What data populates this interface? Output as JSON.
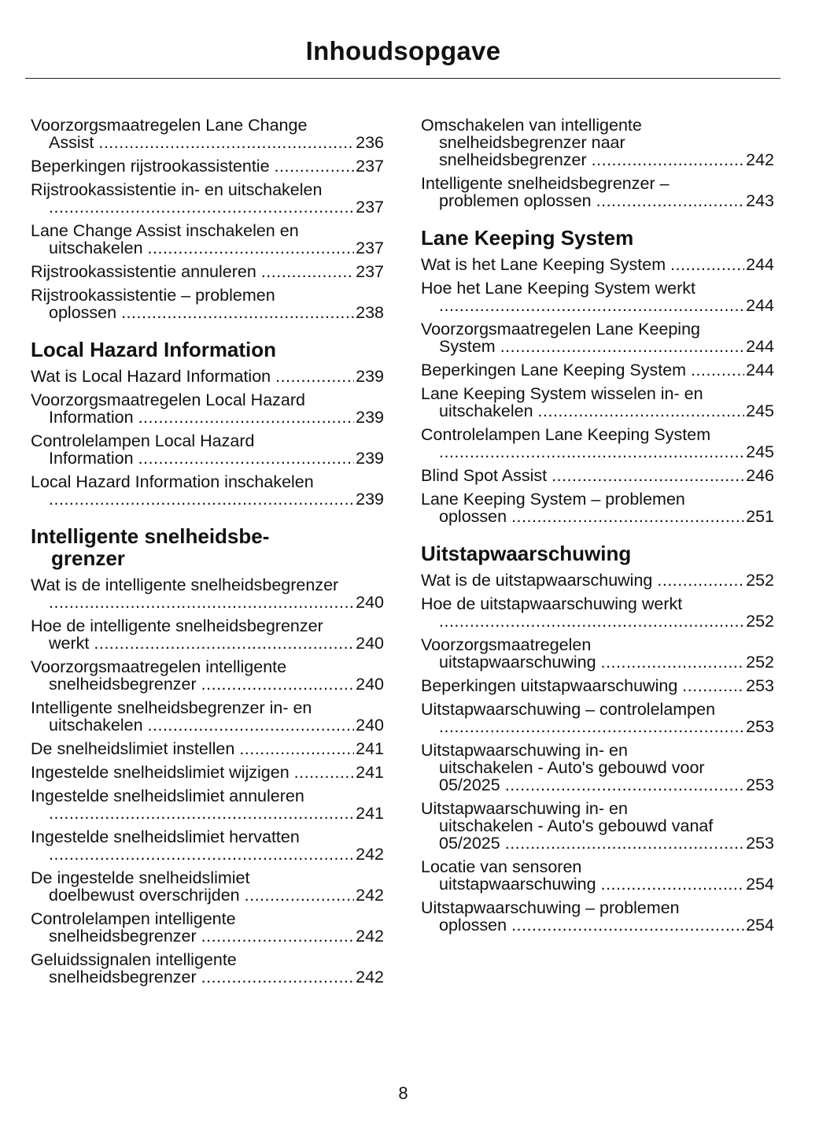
{
  "title": "Inhoudsopgave",
  "page_number": "8",
  "columns": [
    [
      {
        "type": "entry",
        "lines": [
          "Voorzorgsmaatregelen Lane Change",
          "Assist"
        ],
        "page": "236"
      },
      {
        "type": "entry",
        "lines": [
          "Beperkingen rijstrookassistentie"
        ],
        "page": "237"
      },
      {
        "type": "entry",
        "lines": [
          "Rijstrookassistentie in- en uitschakelen",
          ""
        ],
        "page": "237"
      },
      {
        "type": "entry",
        "lines": [
          "Lane Change Assist inschakelen en",
          "uitschakelen"
        ],
        "page": "237"
      },
      {
        "type": "entry",
        "lines": [
          "Rijstrookassistentie annuleren"
        ],
        "page": "237"
      },
      {
        "type": "entry",
        "lines": [
          "Rijstrookassistentie – problemen",
          "oplossen"
        ],
        "page": "238"
      },
      {
        "type": "heading",
        "lines": [
          "Local Hazard Information"
        ]
      },
      {
        "type": "entry",
        "lines": [
          "Wat is Local Hazard Information"
        ],
        "page": "239"
      },
      {
        "type": "entry",
        "lines": [
          "Voorzorgsmaatregelen Local Hazard",
          "Information"
        ],
        "page": "239"
      },
      {
        "type": "entry",
        "lines": [
          "Controlelampen Local Hazard",
          "Information"
        ],
        "page": "239"
      },
      {
        "type": "entry",
        "lines": [
          "Local Hazard Information inschakelen",
          ""
        ],
        "page": "239"
      },
      {
        "type": "heading",
        "lines": [
          "Intelligente snelheidsbe-",
          "grenzer"
        ]
      },
      {
        "type": "entry",
        "lines": [
          "Wat is de intelligente snelheidsbegrenzer",
          ""
        ],
        "page": "240"
      },
      {
        "type": "entry",
        "lines": [
          "Hoe de intelligente snelheidsbegrenzer",
          "werkt"
        ],
        "page": "240"
      },
      {
        "type": "entry",
        "lines": [
          "Voorzorgsmaatregelen intelligente",
          "snelheidsbegrenzer"
        ],
        "page": "240"
      },
      {
        "type": "entry",
        "lines": [
          "Intelligente snelheidsbegrenzer in- en",
          "uitschakelen"
        ],
        "page": "240"
      },
      {
        "type": "entry",
        "lines": [
          "De snelheidslimiet instellen"
        ],
        "page": "241"
      },
      {
        "type": "entry",
        "lines": [
          "Ingestelde snelheidslimiet wijzigen"
        ],
        "page": "241"
      },
      {
        "type": "entry",
        "lines": [
          "Ingestelde snelheidslimiet annuleren",
          ""
        ],
        "page": "241"
      },
      {
        "type": "entry",
        "lines": [
          "Ingestelde snelheidslimiet hervatten",
          ""
        ],
        "page": "242"
      },
      {
        "type": "entry",
        "lines": [
          "De ingestelde snelheidslimiet",
          "doelbewust overschrijden"
        ],
        "page": "242"
      },
      {
        "type": "entry",
        "lines": [
          "Controlelampen intelligente",
          "snelheidsbegrenzer"
        ],
        "page": "242"
      },
      {
        "type": "entry",
        "lines": [
          "Geluidssignalen intelligente",
          "snelheidsbegrenzer"
        ],
        "page": "242"
      }
    ],
    [
      {
        "type": "entry",
        "lines": [
          "Omschakelen van intelligente",
          "snelheidsbegrenzer naar",
          "snelheidsbegrenzer"
        ],
        "page": "242"
      },
      {
        "type": "entry",
        "lines": [
          "Intelligente snelheidsbegrenzer –",
          "problemen oplossen"
        ],
        "page": "243"
      },
      {
        "type": "heading",
        "lines": [
          "Lane Keeping System"
        ]
      },
      {
        "type": "entry",
        "lines": [
          "Wat is het Lane Keeping System"
        ],
        "page": "244"
      },
      {
        "type": "entry",
        "lines": [
          "Hoe het Lane Keeping System werkt",
          ""
        ],
        "page": "244"
      },
      {
        "type": "entry",
        "lines": [
          "Voorzorgsmaatregelen Lane Keeping",
          "System"
        ],
        "page": "244"
      },
      {
        "type": "entry",
        "lines": [
          "Beperkingen Lane Keeping System"
        ],
        "page": "244"
      },
      {
        "type": "entry",
        "lines": [
          "Lane Keeping System wisselen in- en",
          "uitschakelen"
        ],
        "page": "245"
      },
      {
        "type": "entry",
        "lines": [
          "Controlelampen Lane Keeping System",
          ""
        ],
        "page": "245"
      },
      {
        "type": "entry",
        "lines": [
          "Blind Spot Assist"
        ],
        "page": "246"
      },
      {
        "type": "entry",
        "lines": [
          "Lane Keeping System – problemen",
          "oplossen"
        ],
        "page": "251"
      },
      {
        "type": "heading",
        "lines": [
          "Uitstapwaarschuwing"
        ]
      },
      {
        "type": "entry",
        "lines": [
          "Wat is de uitstapwaarschuwing"
        ],
        "page": "252"
      },
      {
        "type": "entry",
        "lines": [
          "Hoe de uitstapwaarschuwing werkt",
          ""
        ],
        "page": "252"
      },
      {
        "type": "entry",
        "lines": [
          "Voorzorgsmaatregelen",
          "uitstapwaarschuwing"
        ],
        "page": "252"
      },
      {
        "type": "entry",
        "lines": [
          "Beperkingen uitstapwaarschuwing"
        ],
        "page": "253"
      },
      {
        "type": "entry",
        "lines": [
          "Uitstapwaarschuwing – controlelampen",
          ""
        ],
        "page": "253"
      },
      {
        "type": "entry",
        "lines": [
          "Uitstapwaarschuwing in- en",
          "uitschakelen - Auto's gebouwd voor",
          "05/2025"
        ],
        "page": "253"
      },
      {
        "type": "entry",
        "lines": [
          "Uitstapwaarschuwing in- en",
          "uitschakelen - Auto's gebouwd vanaf",
          "05/2025"
        ],
        "page": "253"
      },
      {
        "type": "entry",
        "lines": [
          "Locatie van sensoren",
          "uitstapwaarschuwing"
        ],
        "page": "254"
      },
      {
        "type": "entry",
        "lines": [
          "Uitstapwaarschuwing – problemen",
          "oplossen"
        ],
        "page": "254"
      }
    ]
  ]
}
